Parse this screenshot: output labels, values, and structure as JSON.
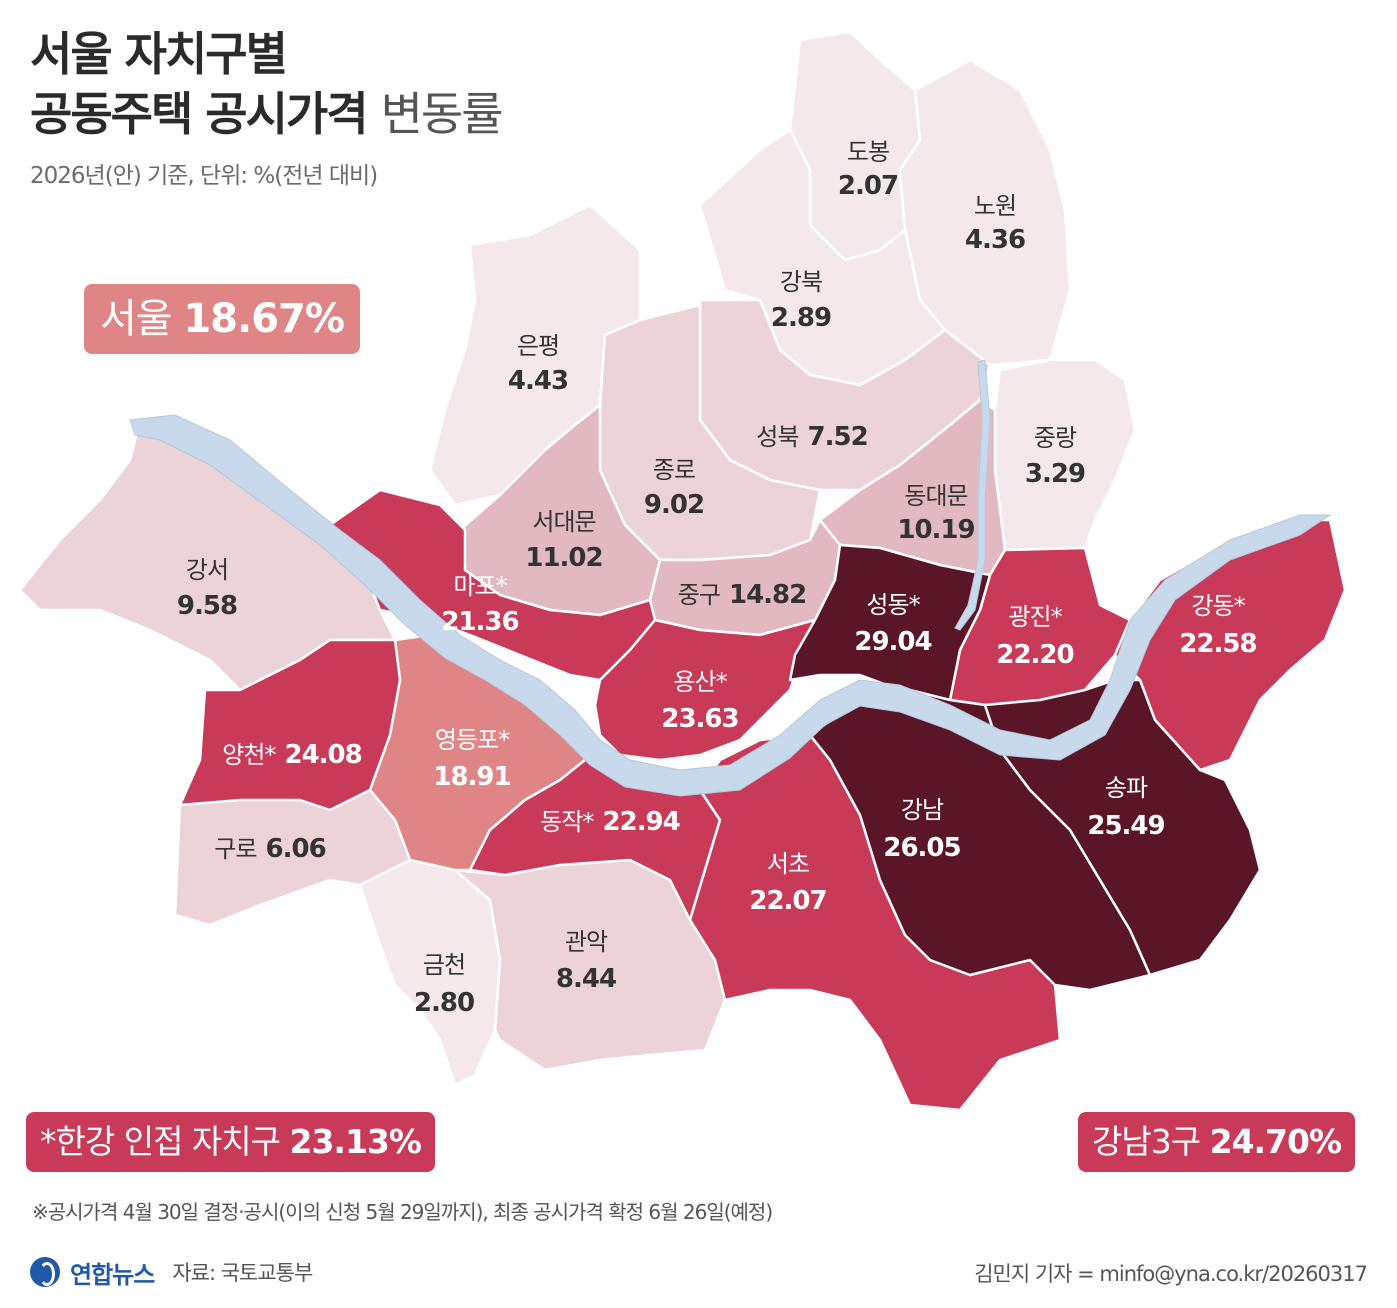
{
  "title": {
    "line1": "서울 자치구별",
    "line2_bold": "공동주택 공시가격",
    "line2_light": "변동률"
  },
  "subtitle": "2026년(안) 기준, 단위: %(전년 대비)",
  "badges": {
    "seoul": {
      "label": "서울",
      "value": "18.67%"
    },
    "hangang": {
      "label": "*한강 인접 자치구",
      "value": "23.13%"
    },
    "gangnam3": {
      "label": "강남3구",
      "value": "24.70%"
    }
  },
  "legend_colors": {
    "lightest": "#f4e8ea",
    "light": "#ecd3d8",
    "medium_light": "#e3b9c1",
    "salmon": "#e08585",
    "red": "#c83a58",
    "maroon": "#5a1627",
    "river": "#c9d9ec"
  },
  "districts": {
    "dobong": {
      "name": "도봉",
      "value": "2.07"
    },
    "nowon": {
      "name": "노원",
      "value": "4.36"
    },
    "gangbuk": {
      "name": "강북",
      "value": "2.89"
    },
    "eunpyeong": {
      "name": "은평",
      "value": "4.43"
    },
    "seongbuk": {
      "name": "성북",
      "value": "7.52"
    },
    "jungnang": {
      "name": "중랑",
      "value": "3.29"
    },
    "jongno": {
      "name": "종로",
      "value": "9.02"
    },
    "dongdaemun": {
      "name": "동대문",
      "value": "10.19"
    },
    "seodaemun": {
      "name": "서대문",
      "value": "11.02"
    },
    "gangseo": {
      "name": "강서",
      "value": "9.58"
    },
    "mapo": {
      "name": "마포*",
      "value": "21.36"
    },
    "junggu": {
      "name": "중구",
      "value": "14.82"
    },
    "seongdong": {
      "name": "성동*",
      "value": "29.04"
    },
    "gwangjin": {
      "name": "광진*",
      "value": "22.20"
    },
    "gangdong": {
      "name": "강동*",
      "value": "22.58"
    },
    "yongsan": {
      "name": "용산*",
      "value": "23.63"
    },
    "yangcheon": {
      "name": "양천*",
      "value": "24.08"
    },
    "yeongdeungpo": {
      "name": "영등포*",
      "value": "18.91"
    },
    "dongjak": {
      "name": "동작*",
      "value": "22.94"
    },
    "guro": {
      "name": "구로",
      "value": "6.06"
    },
    "gangnam": {
      "name": "강남",
      "value": "26.05"
    },
    "songpa": {
      "name": "송파",
      "value": "25.49"
    },
    "seocho": {
      "name": "서초",
      "value": "22.07"
    },
    "gwanak": {
      "name": "관악",
      "value": "8.44"
    },
    "geumcheon": {
      "name": "금천",
      "value": "2.80"
    }
  },
  "note": "※공시가격 4월 30일 결정·공시(이의 신청 5월 29일까지), 최종 공시가격 확정 6월 26일(예정)",
  "footer": {
    "logo": "연합뉴스",
    "source": "자료: 국토교통부",
    "credit": "김민지 기자 = minfo@yna.co.kr/20260317"
  }
}
